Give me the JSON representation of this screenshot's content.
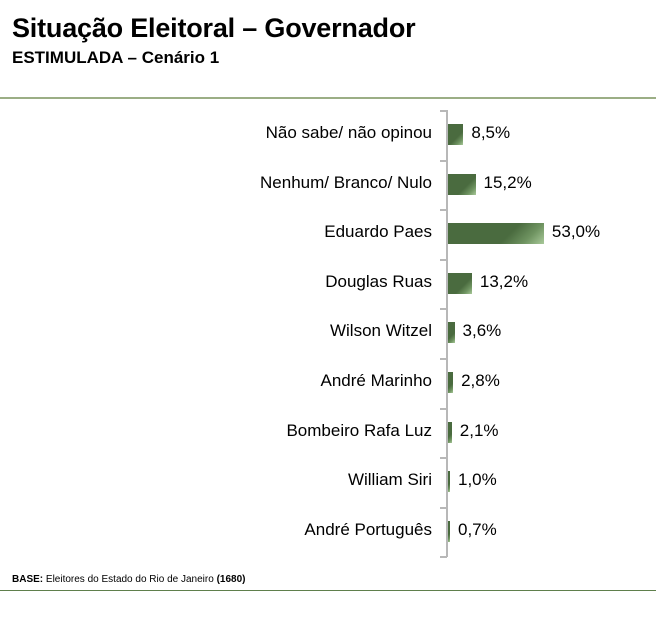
{
  "header": {
    "title": "Situação Eleitoral – Governador",
    "subtitle": "ESTIMULADA – Cenário 1"
  },
  "footer": {
    "base_label": "BASE:",
    "base_text": " Eleitores do Estado do Rio de Janeiro ",
    "base_count": "(1680)"
  },
  "colors": {
    "bar": "#4a6b3f",
    "bar_highlight": "#a9c99a",
    "top_rule": "#9bae85",
    "bottom_rule": "#5f7f4c",
    "axis": "#b8b8b8"
  },
  "chart_data": {
    "type": "bar",
    "orientation": "horizontal",
    "title": "Situação Eleitoral – Governador",
    "subtitle": "ESTIMULADA – Cenário 1",
    "categories": [
      "Não sabe/ não opinou",
      "Nenhum/ Branco/ Nulo",
      "Eduardo Paes",
      "Douglas Ruas",
      "Wilson Witzel",
      "André Marinho",
      "Bombeiro Rafa Luz",
      "William Siri",
      "André Português"
    ],
    "values": [
      8.5,
      15.2,
      53.0,
      13.2,
      3.6,
      2.8,
      2.1,
      1.0,
      0.7
    ],
    "value_labels": [
      "8,5%",
      "15,2%",
      "53,0%",
      "13,2%",
      "3,6%",
      "2,8%",
      "2,1%",
      "1,0%",
      "0,7%"
    ],
    "xlabel": "",
    "ylabel": "",
    "unit": "%",
    "grid": false,
    "legend": null,
    "note": "BASE: Eleitores do Estado do Rio de Janeiro (1680)"
  }
}
